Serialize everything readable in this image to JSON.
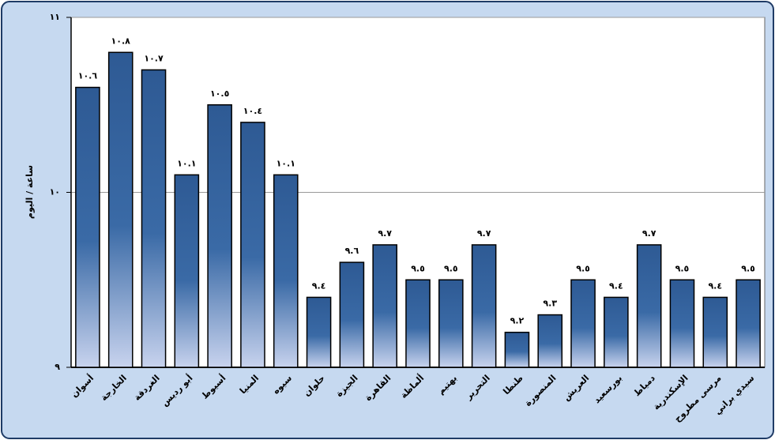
{
  "chart_data": {
    "type": "bar",
    "y_label": "ساعة / اليوم",
    "categories": [
      "أسوان",
      "الخارجة",
      "الغردقة",
      "أبو رديس",
      "أسيوط",
      "المنيا",
      "سيوه",
      "حلوان",
      "الجيزة",
      "القاهرة",
      "ألماظة",
      "بهتيم",
      "التحرير",
      "طنطا",
      "المنصورة",
      "العريش",
      "بورسعيد",
      "دمياط",
      "الإسكندرية",
      "مرسى مطروح",
      "سيدي براني"
    ],
    "values": [
      10.6,
      10.8,
      10.7,
      10.1,
      10.5,
      10.4,
      10.1,
      9.4,
      9.6,
      9.7,
      9.5,
      9.5,
      9.7,
      9.2,
      9.3,
      9.5,
      9.4,
      9.7,
      9.5,
      9.4,
      9.5
    ],
    "value_labels": [
      "١٠.٦",
      "١٠.٨",
      "١٠.٧",
      "١٠.١",
      "١٠.٥",
      "١٠.٤",
      "١٠.١",
      "٩.٤",
      "٩.٦",
      "٩.٧",
      "٩.٥",
      "٩.٥",
      "٩.٧",
      "٩.٢",
      "٩.٣",
      "٩.٥",
      "٩.٤",
      "٩.٧",
      "٩.٥",
      "٩.٤",
      "٩.٥"
    ],
    "color": "#2e5a94",
    "ylim": [
      9,
      11
    ],
    "yticks": [
      {
        "value": 9,
        "label": "٩"
      },
      {
        "value": 10,
        "label": "١٠"
      },
      {
        "value": 11,
        "label": "١١"
      }
    ],
    "grid": true
  }
}
